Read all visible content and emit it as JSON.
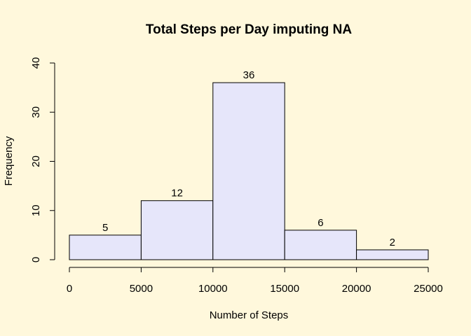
{
  "chart_data": {
    "type": "bar",
    "title": "Total Steps per Day imputing NA",
    "xlabel": "Number of Steps",
    "ylabel": "Frequency",
    "bins": [
      {
        "start": 0,
        "end": 5000,
        "value": 5
      },
      {
        "start": 5000,
        "end": 10000,
        "value": 12
      },
      {
        "start": 10000,
        "end": 15000,
        "value": 36
      },
      {
        "start": 15000,
        "end": 20000,
        "value": 6
      },
      {
        "start": 20000,
        "end": 25000,
        "value": 2
      }
    ],
    "xlim": [
      0,
      25000
    ],
    "ylim": [
      0,
      40
    ],
    "xticks": [
      0,
      5000,
      10000,
      15000,
      20000,
      25000
    ],
    "yticks": [
      0,
      10,
      20,
      30,
      40
    ],
    "bar_color": "#E6E6FA",
    "background_color": "#FFF8DC",
    "grid": false
  }
}
